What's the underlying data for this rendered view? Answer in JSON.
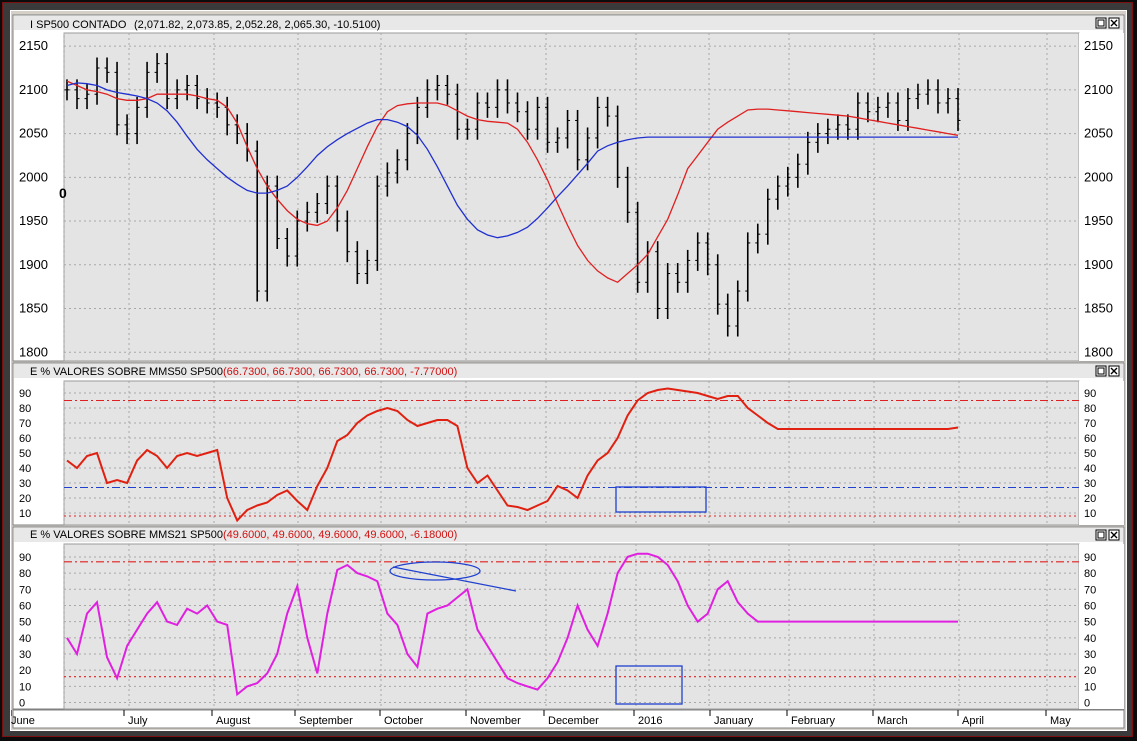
{
  "panels": [
    {
      "title": "I SP500 CONTADO",
      "values": "(2,071.82, 2,073.85, 2,052.28, 2,065.30, -10.5100)",
      "y_ticks": [
        "2150",
        "2100",
        "2050",
        "2000",
        "1950",
        "1900",
        "1850",
        "1800"
      ],
      "left_marker": "0",
      "colors": {
        "title": "#000000",
        "values": "#000000"
      }
    },
    {
      "title": "E % VALORES SOBRE MMS50 SP500",
      "values": "(66.7300, 66.7300, 66.7300, 66.7300, -7.77000)",
      "y_ticks": [
        "90",
        "80",
        "70",
        "60",
        "50",
        "40",
        "30",
        "20",
        "10"
      ],
      "colors": {
        "title": "#000000",
        "values": "#d01010"
      }
    },
    {
      "title": "E % VALORES SOBRE MMS21 SP500",
      "values": "(49.6000, 49.6000, 49.6000, 49.6000, -6.18000)",
      "y_ticks": [
        "90",
        "80",
        "70",
        "60",
        "50",
        "40",
        "30",
        "20",
        "10",
        "0"
      ],
      "colors": {
        "title": "#000000",
        "values": "#d01010"
      }
    }
  ],
  "window_buttons": {
    "restore": "restore-icon",
    "close": "close-icon"
  },
  "x_axis": {
    "first": "",
    "labels": [
      "July",
      "August",
      "September",
      "October",
      "November",
      "December",
      "2016",
      "January",
      "February",
      "March",
      "April",
      "May",
      "June"
    ]
  },
  "chart_data": [
    {
      "type": "ohlc",
      "ylim": [
        1790,
        2165
      ],
      "colors": {
        "bars": "#000000",
        "ma_fast": "#e02020",
        "ma_slow": "#2030d0"
      },
      "x": [
        0,
        10,
        20,
        30,
        40,
        50,
        60,
        70,
        80,
        90,
        100,
        110,
        120,
        130,
        140,
        150,
        160,
        170,
        180,
        190,
        200,
        210,
        220,
        230,
        240,
        250,
        260,
        270,
        280,
        290,
        300,
        310,
        320,
        330,
        340,
        350,
        360,
        370,
        380,
        390,
        400,
        410,
        420,
        430,
        440,
        450,
        460,
        470,
        480,
        490,
        500,
        510,
        520,
        530,
        540,
        550,
        560,
        570,
        580,
        590,
        600,
        610,
        620,
        630,
        640,
        650,
        660,
        670,
        680,
        690,
        700,
        710,
        720,
        730,
        740,
        750,
        760,
        770,
        780,
        790,
        800,
        810,
        820,
        830,
        840,
        850,
        860,
        870,
        880,
        890
      ],
      "close": [
        2100,
        2090,
        2095,
        2125,
        2120,
        2060,
        2050,
        2080,
        2120,
        2130,
        2090,
        2100,
        2105,
        2090,
        2085,
        2080,
        2060,
        2050,
        2030,
        1870,
        1990,
        1930,
        1910,
        1950,
        1960,
        1970,
        1990,
        1950,
        1915,
        1890,
        1905,
        1990,
        2005,
        2020,
        2050,
        2080,
        2100,
        2105,
        2095,
        2055,
        2055,
        2085,
        2080,
        2100,
        2085,
        2075,
        2055,
        2080,
        2040,
        2045,
        2065,
        2020,
        2045,
        2080,
        2070,
        2000,
        1960,
        1880,
        1915,
        1850,
        1890,
        1880,
        1905,
        1925,
        1900,
        1855,
        1830,
        1870,
        1925,
        1935,
        1975,
        1990,
        2000,
        2015,
        2040,
        2050,
        2055,
        2060,
        2055,
        2085,
        2075,
        2080,
        2085,
        2065,
        2090,
        2095,
        2100,
        2085,
        2090,
        2065
      ],
      "ma_fast": [
        2110,
        2105,
        2100,
        2098,
        2095,
        2090,
        2088,
        2088,
        2090,
        2095,
        2095,
        2095,
        2095,
        2093,
        2090,
        2088,
        2080,
        2062,
        2035,
        2010,
        1990,
        1975,
        1962,
        1952,
        1947,
        1945,
        1950,
        1965,
        1985,
        2010,
        2035,
        2058,
        2075,
        2082,
        2084,
        2085,
        2085,
        2085,
        2082,
        2076,
        2070,
        2066,
        2064,
        2063,
        2062,
        2055,
        2040,
        2020,
        1997,
        1970,
        1945,
        1922,
        1905,
        1893,
        1885,
        1880,
        1890,
        1900,
        1912,
        1932,
        1952,
        1980,
        2010,
        2025,
        2040,
        2055,
        2063,
        2070,
        2077,
        2078,
        2078,
        2077,
        2076,
        2075,
        2074,
        2073,
        2072,
        2071,
        2070,
        2068,
        2066,
        2064,
        2062,
        2060,
        2058,
        2056,
        2054,
        2052,
        2050,
        2048
      ],
      "ma_slow": [
        2105,
        2108,
        2107,
        2105,
        2100,
        2097,
        2095,
        2093,
        2090,
        2085,
        2076,
        2063,
        2047,
        2032,
        2020,
        2010,
        2000,
        1992,
        1985,
        1982,
        1982,
        1985,
        1990,
        2000,
        2012,
        2025,
        2035,
        2043,
        2050,
        2056,
        2062,
        2066,
        2066,
        2063,
        2058,
        2048,
        2032,
        2012,
        1990,
        1968,
        1952,
        1940,
        1934,
        1931,
        1933,
        1937,
        1943,
        1953,
        1965,
        1978,
        1990,
        2003,
        2016,
        2030,
        2036,
        2040,
        2043,
        2045,
        2046,
        2046,
        2046,
        2046,
        2046,
        2046,
        2046,
        2046,
        2046,
        2046,
        2046,
        2046,
        2046,
        2046,
        2046,
        2046,
        2046,
        2046,
        2046,
        2046,
        2046,
        2046,
        2046,
        2046,
        2046,
        2046,
        2046,
        2046,
        2046,
        2046,
        2046,
        2046
      ]
    },
    {
      "type": "line",
      "ylim": [
        2,
        98
      ],
      "colors": {
        "line": "#e02010",
        "upper": "#e02020",
        "mid": "#2040d0",
        "lower": "#e02020"
      },
      "upper_level": 85,
      "mid_level": 27,
      "lower_level": 8,
      "values": [
        45,
        40,
        48,
        50,
        30,
        32,
        30,
        45,
        52,
        48,
        40,
        48,
        50,
        48,
        50,
        52,
        20,
        5,
        12,
        15,
        17,
        22,
        25,
        18,
        12,
        28,
        40,
        58,
        62,
        70,
        75,
        78,
        80,
        78,
        72,
        68,
        70,
        72,
        72,
        68,
        40,
        30,
        35,
        25,
        15,
        14,
        12,
        15,
        18,
        28,
        25,
        20,
        35,
        45,
        50,
        60,
        75,
        85,
        90,
        92,
        93,
        92,
        91,
        90,
        88,
        86,
        88,
        88,
        80,
        75,
        70,
        66,
        66,
        66,
        66,
        66,
        66,
        66,
        66,
        66,
        66,
        66,
        66,
        66,
        66,
        66,
        66,
        66,
        66,
        67
      ]
    },
    {
      "type": "line",
      "ylim": [
        -4,
        98
      ],
      "colors": {
        "line": "#e020e0",
        "upper": "#e02020",
        "lower": "#e02020"
      },
      "upper_level": 87,
      "lower_level": 16,
      "values": [
        40,
        30,
        55,
        62,
        28,
        15,
        35,
        45,
        55,
        62,
        50,
        48,
        58,
        55,
        60,
        50,
        48,
        5,
        10,
        12,
        18,
        30,
        55,
        72,
        40,
        18,
        55,
        82,
        85,
        80,
        78,
        75,
        55,
        48,
        30,
        22,
        55,
        58,
        60,
        65,
        70,
        45,
        35,
        25,
        15,
        12,
        10,
        8,
        15,
        25,
        40,
        60,
        45,
        35,
        55,
        80,
        90,
        92,
        92,
        90,
        85,
        75,
        60,
        50,
        55,
        70,
        75,
        62,
        55,
        50,
        50,
        50,
        50,
        50,
        50,
        50,
        50,
        50,
        50,
        50,
        50,
        50,
        50,
        50,
        50,
        50,
        50,
        50,
        50,
        50
      ]
    }
  ]
}
